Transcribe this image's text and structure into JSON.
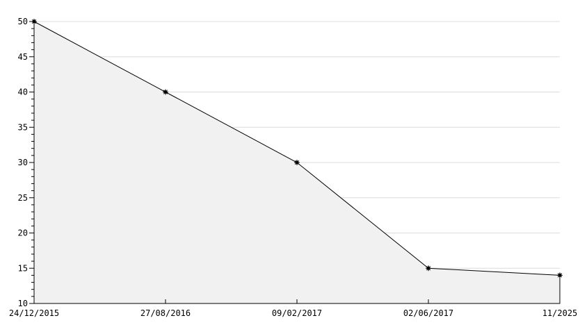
{
  "chart_data": {
    "type": "area",
    "title": "",
    "xlabel": "",
    "ylabel": "",
    "categories": [
      "24/12/2015",
      "27/08/2016",
      "09/02/2017",
      "02/06/2017",
      "11/2025"
    ],
    "values": [
      50,
      40,
      30,
      15,
      14
    ],
    "ylim": [
      10,
      50
    ],
    "ytick_major": 5,
    "ytick_minor": 1,
    "grid": "horizontal-major",
    "legend": "none",
    "marker": "asterisk-dot",
    "colors": {
      "line": "#000000",
      "fill": "#f1f1f1",
      "grid": "#dcdcdc",
      "background": "#ffffff",
      "text": "#000000"
    }
  }
}
